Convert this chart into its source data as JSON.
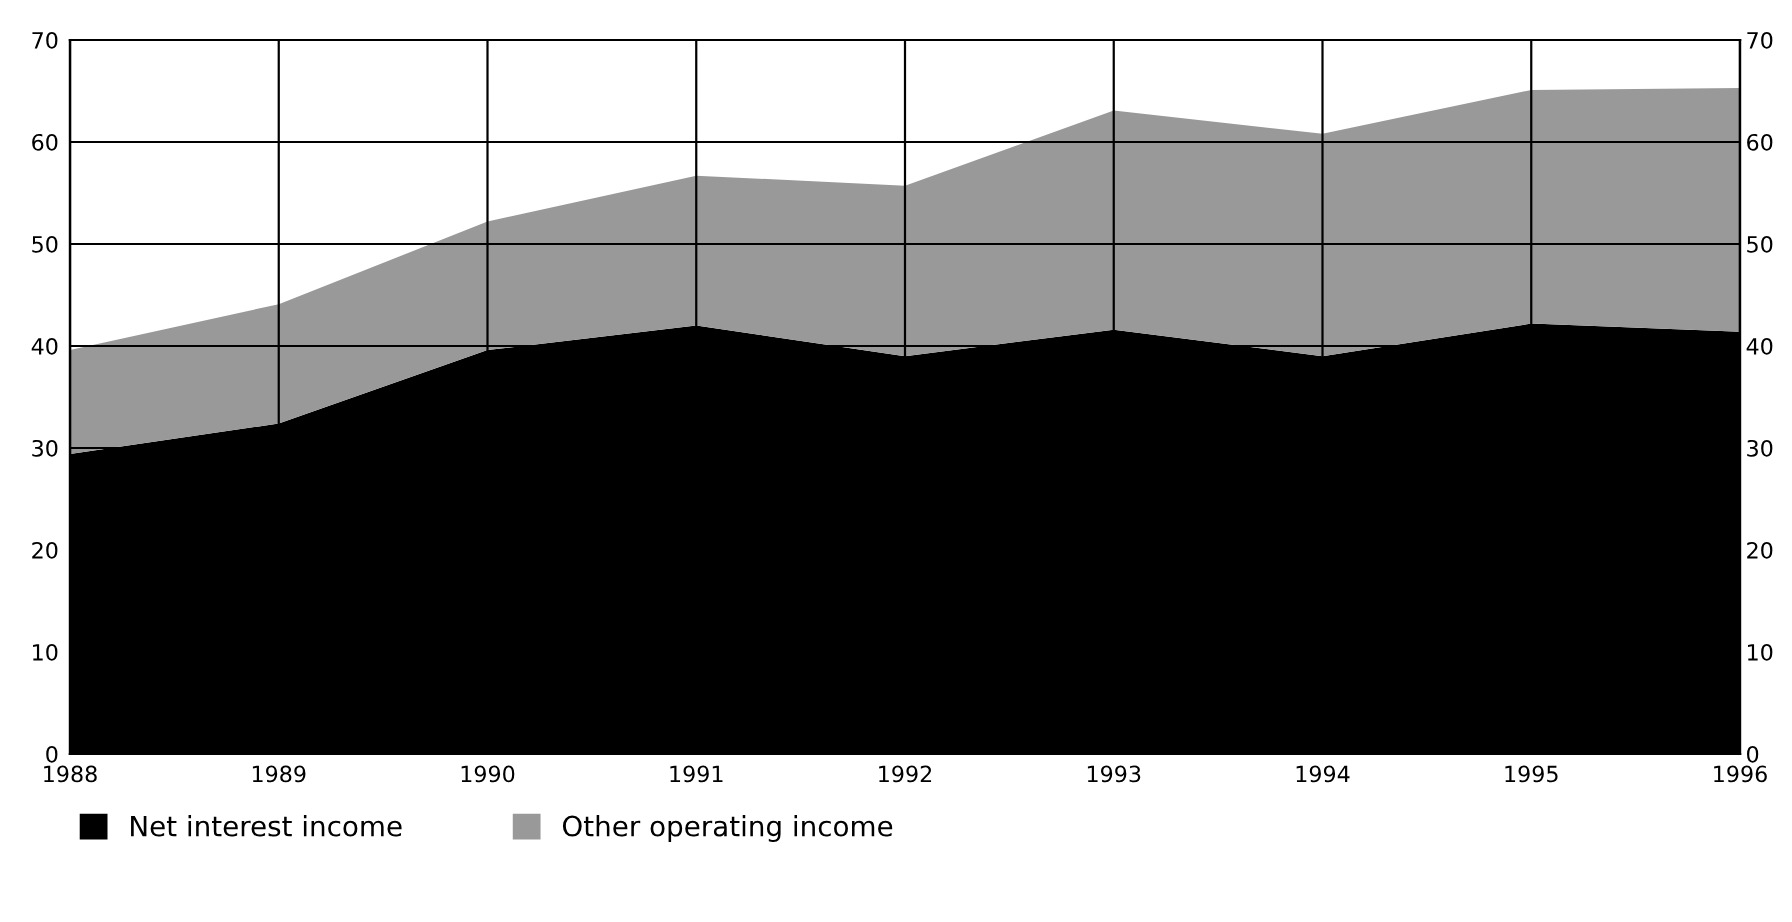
{
  "chart_data": {
    "type": "area",
    "stacked": true,
    "x": [
      1988,
      1989,
      1990,
      1991,
      1992,
      1993,
      1994,
      1995,
      1996
    ],
    "series": [
      {
        "name": "Net interest income",
        "color": "#000000",
        "values": [
          29.4,
          32.4,
          39.6,
          42.0,
          39.0,
          41.6,
          39.0,
          42.2,
          41.4
        ]
      },
      {
        "name": "Other operating income",
        "color": "#999999",
        "values": [
          10.2,
          11.7,
          12.6,
          14.7,
          16.7,
          21.5,
          21.8,
          22.9,
          23.9
        ]
      }
    ],
    "xlim": [
      1988,
      1996
    ],
    "xticks": [
      1988,
      1989,
      1990,
      1991,
      1992,
      1993,
      1994,
      1995,
      1996
    ],
    "ylim": [
      0,
      70
    ],
    "yticks": [
      0,
      10,
      20,
      30,
      40,
      50,
      60,
      70
    ],
    "y2lim": [
      0,
      70
    ],
    "y2ticks": [
      0,
      10,
      20,
      30,
      40,
      50,
      60,
      70
    ],
    "grid": true,
    "legend": "bottom left"
  }
}
